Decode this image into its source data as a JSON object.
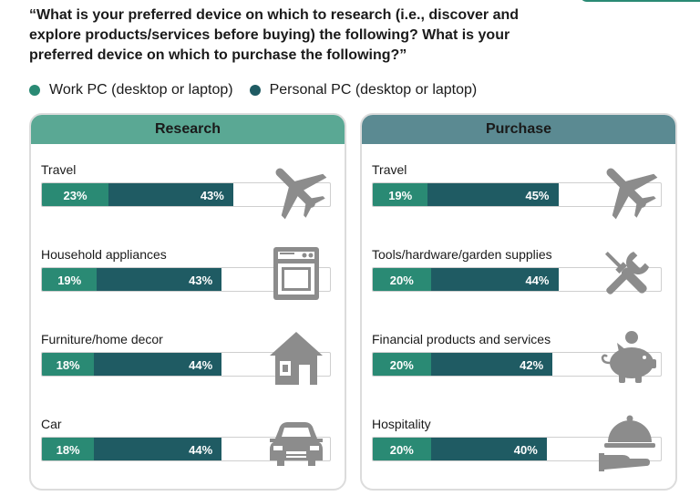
{
  "title": "“What is your preferred device on which to research (i.e., discover and explore products/services before buying) the following? What is your preferred device on which to purchase the following?”",
  "legend": [
    {
      "label": "Work PC (desktop or laptop)",
      "color": "#2a8a74"
    },
    {
      "label": "Personal PC (desktop or laptop)",
      "color": "#1f5b63"
    }
  ],
  "colors": {
    "work": "#2a8a74",
    "personal": "#1f5b63",
    "research_header": "#5aa894",
    "purchase_header": "#5b8a92",
    "icon": "#8c8c8c",
    "corner_tab": "#2a8a74"
  },
  "chart_data": [
    {
      "type": "bar",
      "stacked": true,
      "orientation": "horizontal",
      "title": "Research",
      "xlim": [
        0,
        100
      ],
      "categories": [
        "Travel",
        "Household appliances",
        "Furniture/home decor",
        "Car"
      ],
      "icons": [
        "airplane-icon",
        "oven-icon",
        "house-icon",
        "car-icon"
      ],
      "series": [
        {
          "name": "Work PC (desktop or laptop)",
          "values": [
            23,
            19,
            18,
            18
          ],
          "labels": [
            "23%",
            "19%",
            "18%",
            "18%"
          ]
        },
        {
          "name": "Personal PC (desktop or laptop)",
          "values": [
            43,
            43,
            44,
            44
          ],
          "labels": [
            "43%",
            "43%",
            "44%",
            "44%"
          ]
        }
      ]
    },
    {
      "type": "bar",
      "stacked": true,
      "orientation": "horizontal",
      "title": "Purchase",
      "xlim": [
        0,
        100
      ],
      "categories": [
        "Travel",
        "Tools/hardware/garden supplies",
        "Financial products and services",
        "Hospitality"
      ],
      "icons": [
        "airplane-icon",
        "wrench-screwdriver-icon",
        "piggy-bank-icon",
        "cloche-icon"
      ],
      "series": [
        {
          "name": "Work PC (desktop or laptop)",
          "values": [
            19,
            20,
            20,
            20
          ],
          "labels": [
            "19%",
            "20%",
            "20%",
            "20%"
          ]
        },
        {
          "name": "Personal PC (desktop or laptop)",
          "values": [
            45,
            44,
            42,
            40
          ],
          "labels": [
            "45%",
            "44%",
            "42%",
            "40%"
          ]
        }
      ]
    }
  ]
}
